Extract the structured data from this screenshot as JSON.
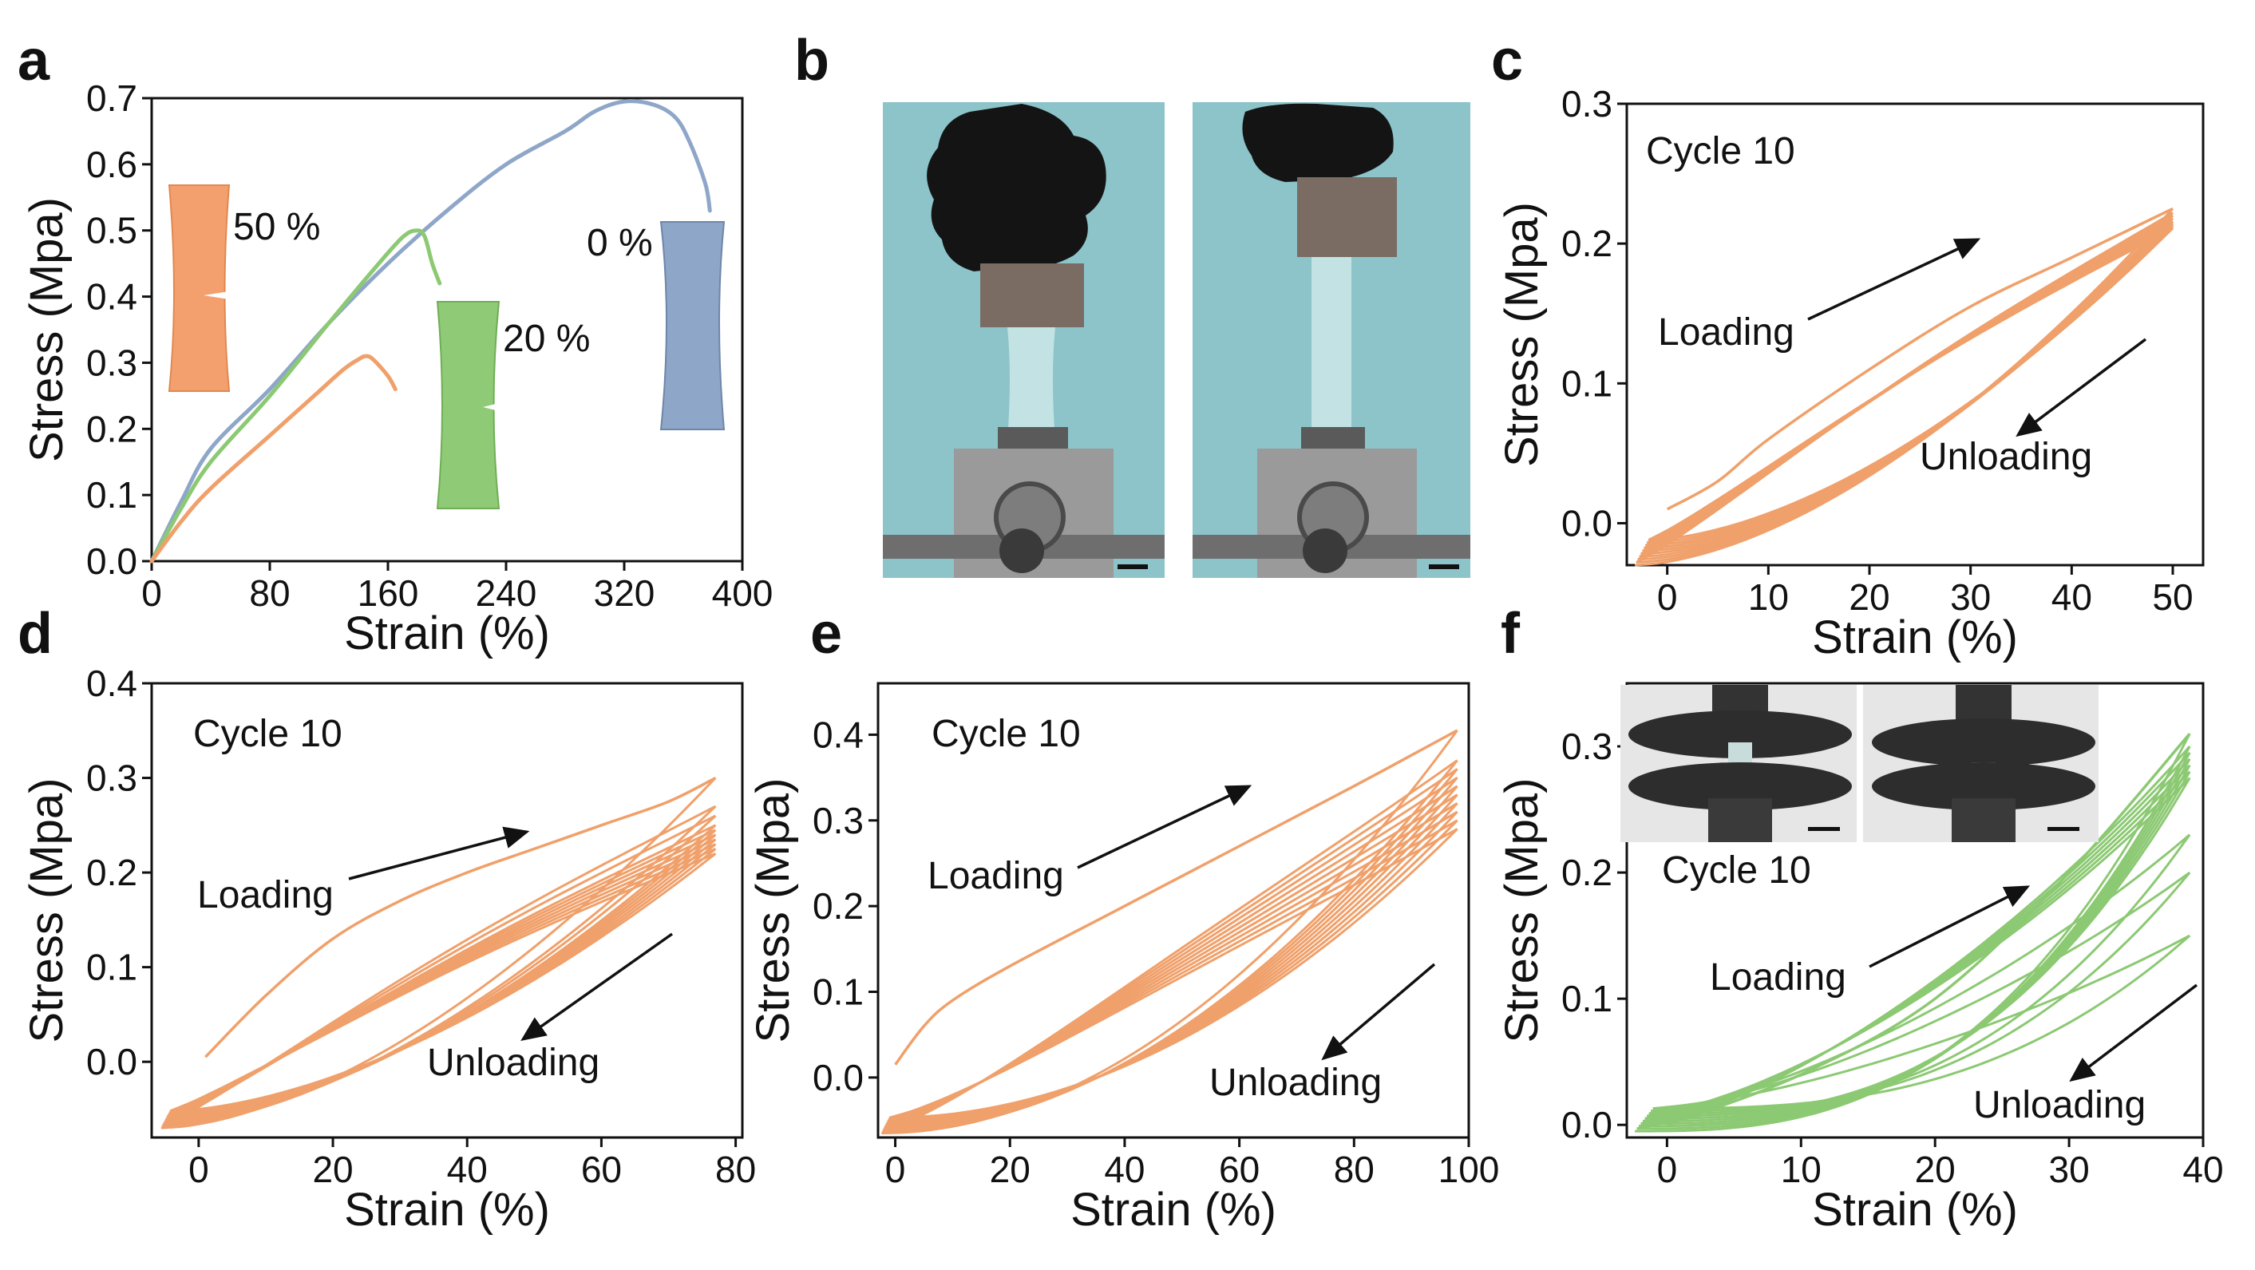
{
  "panels": {
    "a": {
      "letter": "a"
    },
    "b": {
      "letter": "b"
    },
    "c": {
      "letter": "c"
    },
    "d": {
      "letter": "d"
    },
    "e": {
      "letter": "e"
    },
    "f": {
      "letter": "f"
    }
  },
  "colors": {
    "orange": "#f0a06a",
    "green": "#8cc973",
    "blue": "#8ea6c8",
    "axis": "#111111",
    "photo_bg": "#8dc4c9"
  },
  "chart_data": [
    {
      "id": "a",
      "type": "line",
      "xlabel": "Strain (%)",
      "ylabel": "Stress (Mpa)",
      "xlim": [
        0,
        400
      ],
      "ylim": [
        0,
        0.7
      ],
      "xticks": [
        0,
        80,
        160,
        240,
        320,
        400
      ],
      "yticks": [
        0.0,
        0.1,
        0.2,
        0.3,
        0.4,
        0.5,
        0.6,
        0.7
      ],
      "annotations": [
        "0 %",
        "20 %",
        "50 %"
      ],
      "series": [
        {
          "label": "0 %",
          "color": "blue",
          "x": [
            0,
            20,
            40,
            80,
            120,
            160,
            200,
            240,
            280,
            300,
            320,
            340,
            355,
            365,
            375,
            378
          ],
          "y": [
            0,
            0.09,
            0.17,
            0.26,
            0.36,
            0.45,
            0.53,
            0.6,
            0.65,
            0.68,
            0.695,
            0.69,
            0.67,
            0.63,
            0.57,
            0.53
          ]
        },
        {
          "label": "20 %",
          "color": "green",
          "x": [
            0,
            20,
            40,
            80,
            120,
            150,
            170,
            180,
            185,
            190,
            195
          ],
          "y": [
            0,
            0.08,
            0.15,
            0.25,
            0.36,
            0.44,
            0.49,
            0.5,
            0.49,
            0.45,
            0.42
          ]
        },
        {
          "label": "50 %",
          "color": "orange",
          "x": [
            0,
            20,
            40,
            80,
            110,
            130,
            140,
            145,
            150,
            160,
            165
          ],
          "y": [
            0,
            0.06,
            0.11,
            0.19,
            0.25,
            0.29,
            0.305,
            0.31,
            0.305,
            0.28,
            0.26
          ]
        }
      ]
    },
    {
      "id": "c",
      "type": "line",
      "title": "Cycle 10",
      "xlabel": "Strain (%)",
      "ylabel": "Stress (Mpa)",
      "xlim": [
        -4,
        53
      ],
      "ylim": [
        -0.03,
        0.3
      ],
      "xticks": [
        0,
        10,
        20,
        30,
        40,
        50
      ],
      "yticks": [
        0.0,
        0.1,
        0.2,
        0.3
      ],
      "annotations": [
        "Loading",
        "Unloading"
      ],
      "cycles": 10,
      "strain_max": 50,
      "first_loading": [
        [
          0,
          0.01
        ],
        [
          5,
          0.03
        ],
        [
          10,
          0.06
        ],
        [
          20,
          0.11
        ],
        [
          30,
          0.155
        ],
        [
          40,
          0.19
        ],
        [
          50,
          0.225
        ]
      ],
      "peak_stresses": [
        0.225,
        0.222,
        0.22,
        0.218,
        0.216,
        0.215,
        0.214,
        0.213,
        0.212,
        0.211
      ],
      "residual_stress": -0.03
    },
    {
      "id": "d",
      "type": "line",
      "title": "Cycle 10",
      "xlabel": "Strain (%)",
      "ylabel": "Stress (Mpa)",
      "xlim": [
        -7,
        81
      ],
      "ylim": [
        -0.08,
        0.4
      ],
      "xticks": [
        0,
        20,
        40,
        60,
        80
      ],
      "yticks": [
        0.0,
        0.1,
        0.2,
        0.3,
        0.4
      ],
      "annotations": [
        "Loading",
        "Unloading"
      ],
      "cycles": 10,
      "strain_max": 77,
      "first_loading": [
        [
          1,
          0.005
        ],
        [
          10,
          0.07
        ],
        [
          20,
          0.13
        ],
        [
          30,
          0.17
        ],
        [
          40,
          0.2
        ],
        [
          50,
          0.225
        ],
        [
          60,
          0.25
        ],
        [
          70,
          0.275
        ],
        [
          77,
          0.3
        ]
      ],
      "peak_stresses": [
        0.3,
        0.27,
        0.26,
        0.25,
        0.245,
        0.24,
        0.235,
        0.23,
        0.225,
        0.22
      ],
      "residual_stress": -0.07
    },
    {
      "id": "e",
      "type": "line",
      "title": "Cycle 10",
      "xlabel": "Strain (%)",
      "ylabel": "Stress (Mpa)",
      "xlim": [
        -3,
        100
      ],
      "ylim": [
        -0.07,
        0.46
      ],
      "xticks": [
        0,
        20,
        40,
        60,
        80,
        100
      ],
      "yticks": [
        0.0,
        0.1,
        0.2,
        0.3,
        0.4
      ],
      "annotations": [
        "Loading",
        "Unloading"
      ],
      "cycles": 10,
      "strain_max": 98,
      "first_loading": [
        [
          0,
          0.015
        ],
        [
          5,
          0.06
        ],
        [
          10,
          0.09
        ],
        [
          20,
          0.13
        ],
        [
          40,
          0.2
        ],
        [
          60,
          0.27
        ],
        [
          80,
          0.34
        ],
        [
          98,
          0.405
        ]
      ],
      "peak_stresses": [
        0.405,
        0.37,
        0.36,
        0.35,
        0.34,
        0.33,
        0.32,
        0.31,
        0.3,
        0.29
      ],
      "residual_stress": -0.065
    },
    {
      "id": "f",
      "type": "line",
      "title": "Cycle 10",
      "xlabel": "Strain (%)",
      "ylabel": "Stress (Mpa)",
      "xlim": [
        -3,
        40
      ],
      "ylim": [
        -0.01,
        0.35
      ],
      "xticks": [
        0,
        10,
        20,
        30,
        40
      ],
      "yticks": [
        0.0,
        0.1,
        0.2,
        0.3
      ],
      "annotations": [
        "Loading",
        "Unloading"
      ],
      "cycles": 10,
      "strain_max": 39,
      "first_loading": [
        [
          0,
          0.0
        ],
        [
          10,
          0.04
        ],
        [
          20,
          0.1
        ],
        [
          30,
          0.2
        ],
        [
          39,
          0.31
        ]
      ],
      "peak_stresses": [
        0.31,
        0.3,
        0.295,
        0.29,
        0.285,
        0.28,
        0.275,
        0.23,
        0.2,
        0.15
      ],
      "residual_stress": -0.005
    }
  ]
}
